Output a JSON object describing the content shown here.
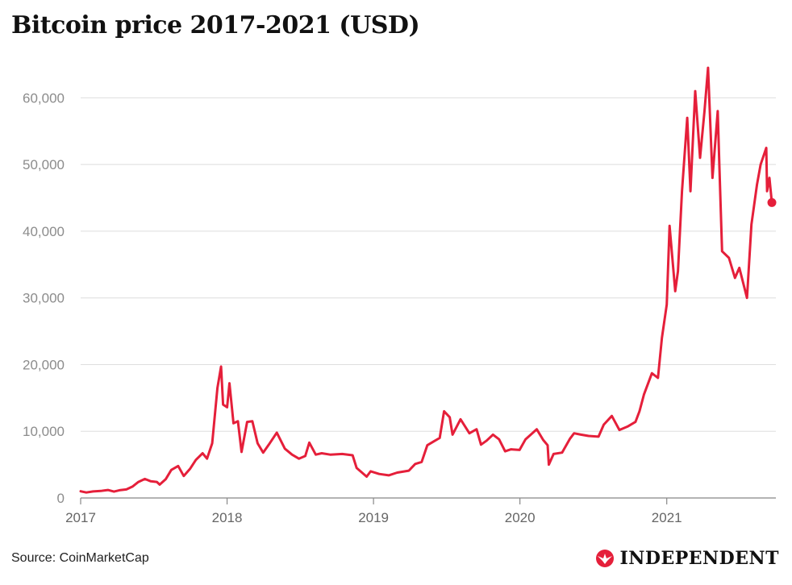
{
  "footer": {
    "source": "Source: CoinMarketCap",
    "logo_text": "INDEPENDENT",
    "logo_icon": "eagle-icon"
  },
  "colors": {
    "line": "#e51f3a",
    "grid": "#dedede",
    "text_axis": "#8c8c8c"
  },
  "chart_data": {
    "type": "line",
    "title": "Bitcoin price 2017-2021 (USD)",
    "xlabel": "",
    "ylabel": "",
    "x_ticks": [
      "2017",
      "2018",
      "2019",
      "2020",
      "2021"
    ],
    "y_ticks": [
      "0",
      "10,000",
      "20,000",
      "30,000",
      "40,000",
      "50,000",
      "60,000"
    ],
    "xlim": [
      "2017-01-01",
      "2021-09-30"
    ],
    "ylim": [
      0,
      65000
    ],
    "grid": true,
    "legend": "none",
    "end_marker": {
      "date": "2021-09-20",
      "value": 44300
    },
    "series": [
      {
        "points": [
          [
            "2017-01-01",
            1000
          ],
          [
            "2017-01-15",
            820
          ],
          [
            "2017-02-01",
            980
          ],
          [
            "2017-02-20",
            1050
          ],
          [
            "2017-03-10",
            1200
          ],
          [
            "2017-03-25",
            950
          ],
          [
            "2017-04-10",
            1180
          ],
          [
            "2017-04-25",
            1280
          ],
          [
            "2017-05-10",
            1700
          ],
          [
            "2017-05-25",
            2400
          ],
          [
            "2017-06-10",
            2850
          ],
          [
            "2017-06-25",
            2500
          ],
          [
            "2017-07-10",
            2400
          ],
          [
            "2017-07-17",
            2000
          ],
          [
            "2017-08-01",
            2800
          ],
          [
            "2017-08-15",
            4200
          ],
          [
            "2017-09-01",
            4800
          ],
          [
            "2017-09-15",
            3300
          ],
          [
            "2017-10-01",
            4400
          ],
          [
            "2017-10-15",
            5700
          ],
          [
            "2017-11-01",
            6700
          ],
          [
            "2017-11-12",
            5900
          ],
          [
            "2017-11-25",
            8200
          ],
          [
            "2017-12-08",
            16500
          ],
          [
            "2017-12-17",
            19700
          ],
          [
            "2017-12-22",
            14000
          ],
          [
            "2018-01-01",
            13600
          ],
          [
            "2018-01-07",
            17200
          ],
          [
            "2018-01-17",
            11200
          ],
          [
            "2018-01-28",
            11500
          ],
          [
            "2018-02-06",
            6900
          ],
          [
            "2018-02-20",
            11400
          ],
          [
            "2018-03-05",
            11500
          ],
          [
            "2018-03-18",
            8200
          ],
          [
            "2018-04-01",
            6800
          ],
          [
            "2018-04-15",
            8000
          ],
          [
            "2018-05-05",
            9800
          ],
          [
            "2018-05-25",
            7400
          ],
          [
            "2018-06-12",
            6500
          ],
          [
            "2018-06-29",
            5900
          ],
          [
            "2018-07-15",
            6300
          ],
          [
            "2018-07-25",
            8300
          ],
          [
            "2018-08-10",
            6500
          ],
          [
            "2018-08-25",
            6700
          ],
          [
            "2018-09-15",
            6500
          ],
          [
            "2018-10-15",
            6600
          ],
          [
            "2018-11-10",
            6400
          ],
          [
            "2018-11-20",
            4500
          ],
          [
            "2018-12-15",
            3200
          ],
          [
            "2018-12-25",
            4000
          ],
          [
            "2019-01-15",
            3600
          ],
          [
            "2019-02-08",
            3400
          ],
          [
            "2019-03-01",
            3800
          ],
          [
            "2019-03-30",
            4100
          ],
          [
            "2019-04-15",
            5100
          ],
          [
            "2019-05-01",
            5400
          ],
          [
            "2019-05-15",
            7900
          ],
          [
            "2019-06-01",
            8500
          ],
          [
            "2019-06-15",
            9000
          ],
          [
            "2019-06-26",
            13000
          ],
          [
            "2019-07-10",
            12100
          ],
          [
            "2019-07-17",
            9500
          ],
          [
            "2019-08-06",
            11800
          ],
          [
            "2019-08-28",
            9700
          ],
          [
            "2019-09-15",
            10300
          ],
          [
            "2019-09-26",
            8000
          ],
          [
            "2019-10-10",
            8600
          ],
          [
            "2019-10-26",
            9500
          ],
          [
            "2019-11-10",
            8800
          ],
          [
            "2019-11-25",
            7000
          ],
          [
            "2019-12-10",
            7300
          ],
          [
            "2019-12-31",
            7200
          ],
          [
            "2020-01-15",
            8800
          ],
          [
            "2020-02-12",
            10300
          ],
          [
            "2020-02-28",
            8700
          ],
          [
            "2020-03-10",
            7900
          ],
          [
            "2020-03-13",
            5000
          ],
          [
            "2020-03-25",
            6600
          ],
          [
            "2020-04-15",
            6800
          ],
          [
            "2020-05-05",
            8900
          ],
          [
            "2020-05-15",
            9700
          ],
          [
            "2020-06-01",
            9500
          ],
          [
            "2020-06-20",
            9300
          ],
          [
            "2020-07-15",
            9200
          ],
          [
            "2020-07-28",
            11000
          ],
          [
            "2020-08-17",
            12300
          ],
          [
            "2020-09-05",
            10200
          ],
          [
            "2020-09-25",
            10700
          ],
          [
            "2020-10-15",
            11400
          ],
          [
            "2020-10-25",
            13000
          ],
          [
            "2020-11-05",
            15500
          ],
          [
            "2020-11-25",
            18700
          ],
          [
            "2020-12-10",
            18000
          ],
          [
            "2020-12-20",
            24000
          ],
          [
            "2021-01-01",
            29000
          ],
          [
            "2021-01-08",
            40800
          ],
          [
            "2021-01-22",
            31000
          ],
          [
            "2021-01-29",
            34000
          ],
          [
            "2021-02-08",
            46000
          ],
          [
            "2021-02-21",
            57000
          ],
          [
            "2021-03-01",
            46000
          ],
          [
            "2021-03-13",
            61000
          ],
          [
            "2021-03-25",
            51000
          ],
          [
            "2021-04-05",
            58000
          ],
          [
            "2021-04-14",
            64500
          ],
          [
            "2021-04-25",
            48000
          ],
          [
            "2021-05-08",
            58000
          ],
          [
            "2021-05-12",
            50000
          ],
          [
            "2021-05-19",
            37000
          ],
          [
            "2021-06-05",
            36000
          ],
          [
            "2021-06-20",
            33000
          ],
          [
            "2021-07-01",
            34500
          ],
          [
            "2021-07-20",
            30000
          ],
          [
            "2021-07-31",
            41000
          ],
          [
            "2021-08-14",
            47000
          ],
          [
            "2021-08-23",
            50000
          ],
          [
            "2021-09-06",
            52500
          ],
          [
            "2021-09-08",
            46000
          ],
          [
            "2021-09-14",
            48000
          ],
          [
            "2021-09-20",
            44300
          ]
        ]
      }
    ]
  }
}
